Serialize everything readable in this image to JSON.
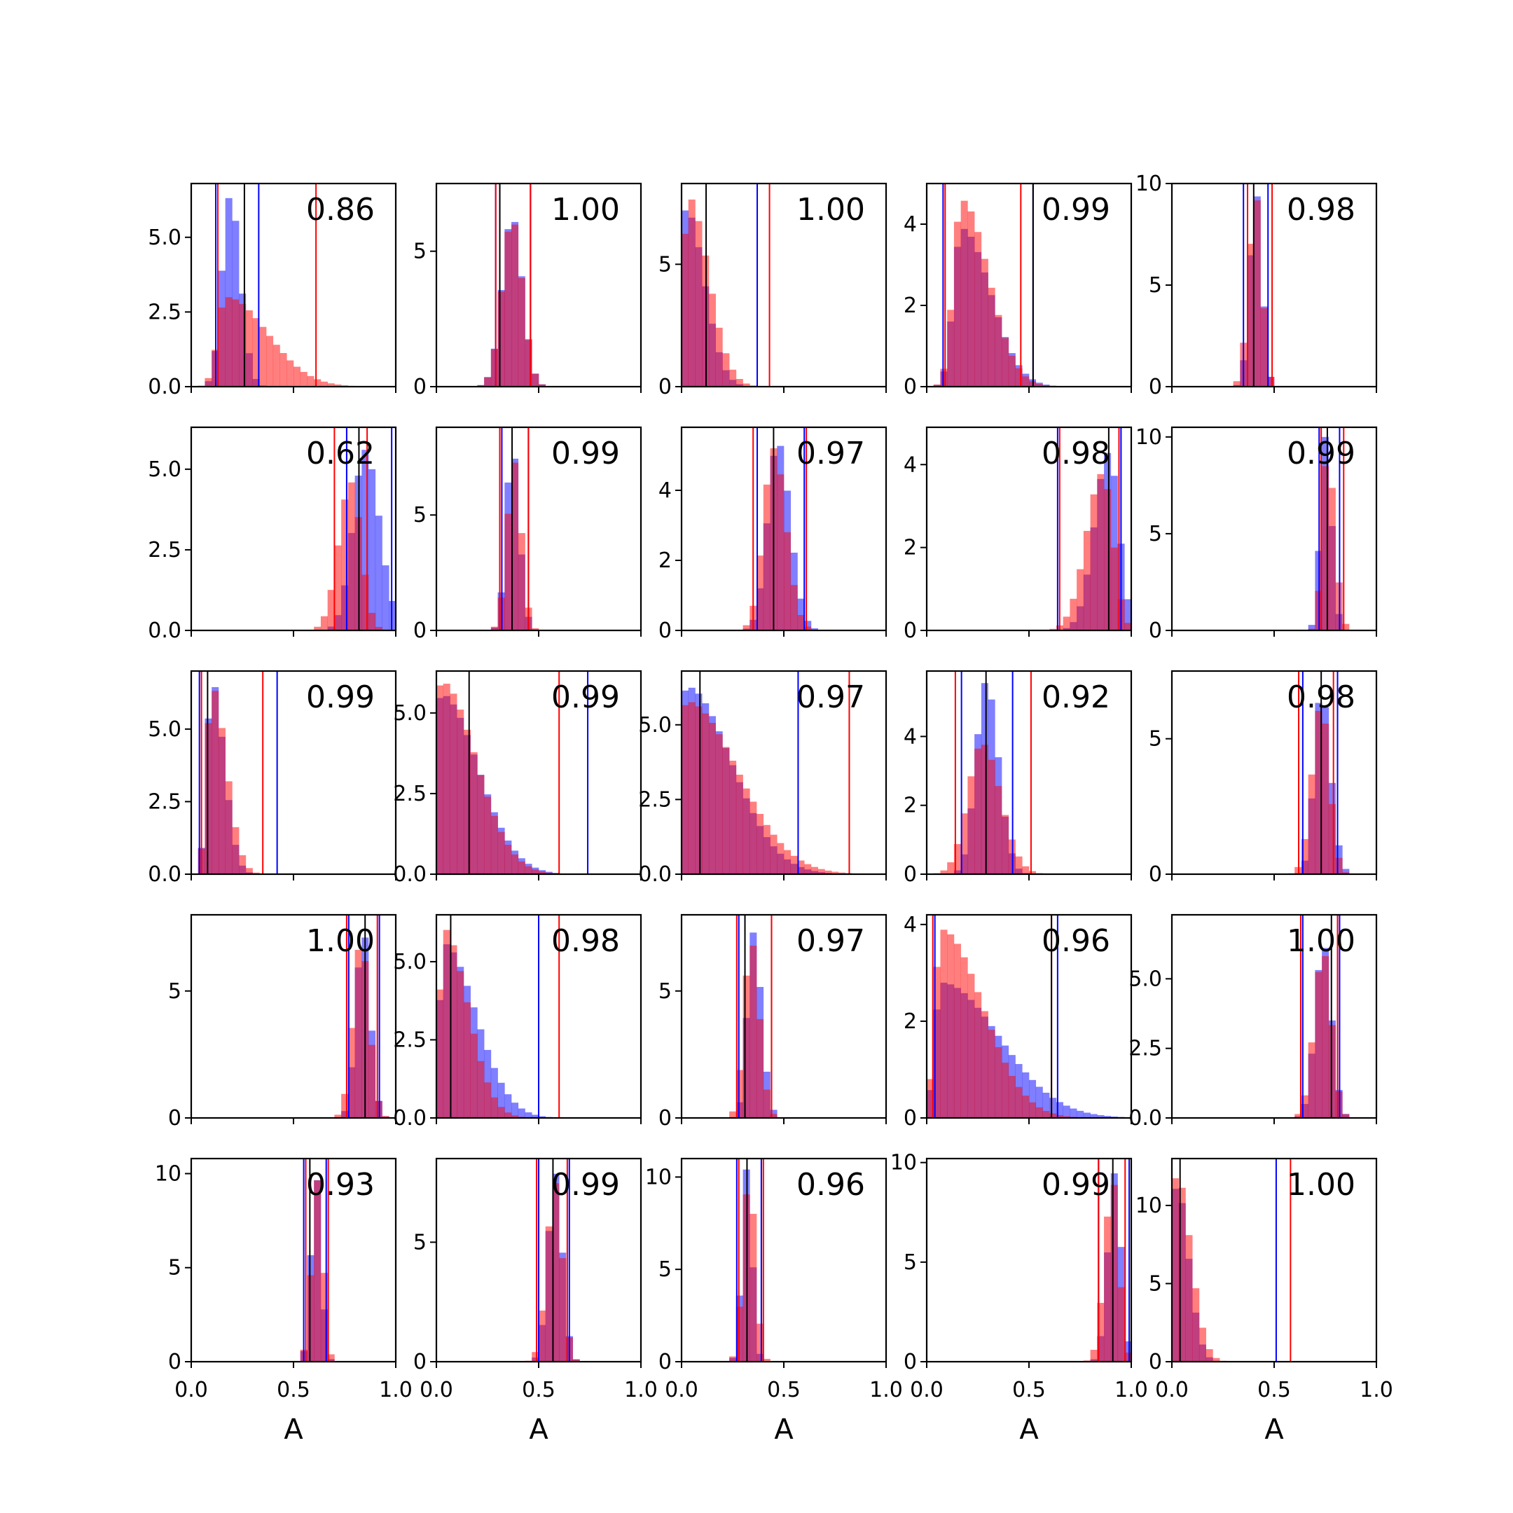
{
  "colors": {
    "blue": "#0000ff",
    "red": "#ff0000",
    "black": "#000000",
    "blue_fill_opacity": 0.5,
    "red_fill_opacity": 0.5
  },
  "chart_data": {
    "type": "histogram-grid",
    "rows": 5,
    "cols": 5,
    "xlim": [
      0.0,
      1.0
    ],
    "xticks": [
      0.0,
      0.5,
      1.0
    ],
    "xtick_labels": [
      "0.0",
      "0.5",
      "1.0"
    ],
    "xlabel": "A",
    "nbins": 30,
    "series": [
      {
        "name": "blue",
        "color": "#0000ff"
      },
      {
        "name": "red",
        "color": "#ff0000"
      }
    ],
    "panels": [
      {
        "score": "0.86",
        "ymax": 6.8,
        "yticks": [
          0,
          2.5,
          5
        ],
        "ytick_labels": [
          "0.0",
          "2.5",
          "5.0"
        ],
        "blue": {
          "peak": 0.19,
          "left_sd": 0.04,
          "right_sd": 0.05,
          "height": 6.4
        },
        "red": {
          "peak": 0.17,
          "left_sd": 0.04,
          "right_sd": 0.2,
          "height": 3.0
        },
        "lines": {
          "blue": [
            0.12,
            0.33
          ],
          "red": [
            0.13,
            0.61
          ],
          "black": [
            0.26
          ]
        }
      },
      {
        "score": "1.00",
        "ymax": 7.5,
        "yticks": [
          0,
          5
        ],
        "ytick_labels": [
          "0",
          "5"
        ],
        "blue": {
          "peak": 0.37,
          "left_sd": 0.05,
          "right_sd": 0.05,
          "height": 6.3
        },
        "red": {
          "peak": 0.37,
          "left_sd": 0.05,
          "right_sd": 0.05,
          "height": 6.2
        },
        "lines": {
          "blue": [
            0.29,
            0.46
          ],
          "red": [
            0.29,
            0.46
          ],
          "black": [
            0.31
          ]
        }
      },
      {
        "score": "1.00",
        "ymax": 8.3,
        "yticks": [
          0,
          5
        ],
        "ytick_labels": [
          "0",
          "5"
        ],
        "blue": {
          "peak": 0.02,
          "left_sd": 0.02,
          "right_sd": 0.09,
          "height": 7.3
        },
        "red": {
          "peak": 0.03,
          "left_sd": 0.02,
          "right_sd": 0.1,
          "height": 7.8
        },
        "lines": {
          "blue": [
            0.37
          ],
          "red": [
            0.43
          ],
          "black": [
            0.12
          ]
        }
      },
      {
        "score": "0.99",
        "ymax": 5.0,
        "yticks": [
          0,
          2,
          4
        ],
        "ytick_labels": [
          "0",
          "2",
          "4"
        ],
        "blue": {
          "peak": 0.17,
          "left_sd": 0.04,
          "right_sd": 0.14,
          "height": 3.9
        },
        "red": {
          "peak": 0.17,
          "left_sd": 0.04,
          "right_sd": 0.13,
          "height": 4.6
        },
        "lines": {
          "blue": [
            0.08,
            0.52
          ],
          "red": [
            0.09,
            0.46
          ],
          "black": [
            0.52
          ]
        }
      },
      {
        "score": "0.98",
        "ymax": 10,
        "yticks": [
          0,
          5,
          10
        ],
        "ytick_labels": [
          "0",
          "5",
          "10"
        ],
        "blue": {
          "peak": 0.41,
          "left_sd": 0.03,
          "right_sd": 0.03,
          "height": 9.6
        },
        "red": {
          "peak": 0.41,
          "left_sd": 0.035,
          "right_sd": 0.03,
          "height": 9.4
        },
        "lines": {
          "blue": [
            0.35,
            0.47
          ],
          "red": [
            0.37,
            0.49
          ],
          "black": [
            0.4
          ]
        }
      },
      {
        "score": "0.62",
        "ymax": 6.3,
        "yticks": [
          0,
          2.5,
          5
        ],
        "ytick_labels": [
          "0.0",
          "2.5",
          "5.0"
        ],
        "blue": {
          "peak": 0.85,
          "left_sd": 0.06,
          "right_sd": 0.07,
          "height": 5.6
        },
        "red": {
          "peak": 0.78,
          "left_sd": 0.06,
          "right_sd": 0.05,
          "height": 4.6
        },
        "lines": {
          "blue": [
            0.76,
            0.98
          ],
          "red": [
            0.7,
            0.86
          ],
          "black": [
            0.82
          ]
        }
      },
      {
        "score": "0.99",
        "ymax": 8.8,
        "yticks": [
          0,
          5
        ],
        "ytick_labels": [
          "0",
          "5"
        ],
        "blue": {
          "peak": 0.37,
          "left_sd": 0.03,
          "right_sd": 0.035,
          "height": 8.0
        },
        "red": {
          "peak": 0.38,
          "left_sd": 0.035,
          "right_sd": 0.035,
          "height": 7.3
        },
        "lines": {
          "blue": [
            0.32,
            0.45
          ],
          "red": [
            0.31,
            0.45
          ],
          "black": [
            0.37
          ]
        }
      },
      {
        "score": "0.97",
        "ymax": 5.8,
        "yticks": [
          0,
          2,
          4
        ],
        "ytick_labels": [
          "0",
          "2",
          "4"
        ],
        "blue": {
          "peak": 0.47,
          "left_sd": 0.05,
          "right_sd": 0.06,
          "height": 5.4
        },
        "red": {
          "peak": 0.45,
          "left_sd": 0.05,
          "right_sd": 0.06,
          "height": 5.2
        },
        "lines": {
          "blue": [
            0.37,
            0.6
          ],
          "red": [
            0.35,
            0.61
          ],
          "black": [
            0.45
          ]
        }
      },
      {
        "score": "0.98",
        "ymax": 4.9,
        "yticks": [
          0,
          2,
          4
        ],
        "ytick_labels": [
          "0",
          "2",
          "4"
        ],
        "blue": {
          "peak": 0.89,
          "left_sd": 0.07,
          "right_sd": 0.05,
          "height": 4.3
        },
        "red": {
          "peak": 0.86,
          "left_sd": 0.08,
          "right_sd": 0.05,
          "height": 3.8
        },
        "lines": {
          "blue": [
            0.64,
            0.95
          ],
          "red": [
            0.65,
            0.94
          ],
          "black": [
            0.89
          ]
        }
      },
      {
        "score": "0.99",
        "ymax": 10.5,
        "yticks": [
          0,
          5,
          10
        ],
        "ytick_labels": [
          "0",
          "5",
          "10"
        ],
        "blue": {
          "peak": 0.75,
          "left_sd": 0.025,
          "right_sd": 0.03,
          "height": 10.0
        },
        "red": {
          "peak": 0.76,
          "left_sd": 0.025,
          "right_sd": 0.035,
          "height": 9.2
        },
        "lines": {
          "blue": [
            0.72,
            0.82
          ],
          "red": [
            0.73,
            0.84
          ],
          "black": [
            0.76
          ]
        }
      },
      {
        "score": "0.99",
        "ymax": 7.0,
        "yticks": [
          0,
          2.5,
          5
        ],
        "ytick_labels": [
          "0.0",
          "2.5",
          "5.0"
        ],
        "blue": {
          "peak": 0.1,
          "left_sd": 0.025,
          "right_sd": 0.06,
          "height": 6.7
        },
        "red": {
          "peak": 0.1,
          "left_sd": 0.025,
          "right_sd": 0.07,
          "height": 6.5
        },
        "lines": {
          "blue": [
            0.04,
            0.42
          ],
          "red": [
            0.05,
            0.35
          ],
          "black": [
            0.08
          ]
        }
      },
      {
        "score": "0.99",
        "ymax": 6.3,
        "yticks": [
          0,
          2.5,
          5
        ],
        "ytick_labels": [
          "0.0",
          "2.5",
          "5.0"
        ],
        "blue": {
          "peak": 0.02,
          "left_sd": 0.015,
          "right_sd": 0.18,
          "height": 5.6
        },
        "red": {
          "peak": 0.02,
          "left_sd": 0.015,
          "right_sd": 0.17,
          "height": 6.0
        },
        "lines": {
          "blue": [
            0.74
          ],
          "red": [
            0.6
          ],
          "black": [
            0.16
          ]
        }
      },
      {
        "score": "0.97",
        "ymax": 6.8,
        "yticks": [
          0,
          2.5,
          5
        ],
        "ytick_labels": [
          "0.0",
          "2.5",
          "5.0"
        ],
        "blue": {
          "peak": 0.02,
          "left_sd": 0.015,
          "right_sd": 0.22,
          "height": 6.3
        },
        "red": {
          "peak": 0.02,
          "left_sd": 0.015,
          "right_sd": 0.25,
          "height": 5.8
        },
        "lines": {
          "blue": [
            0.57
          ],
          "red": [
            0.82
          ],
          "black": [
            0.09
          ]
        }
      },
      {
        "score": "0.92",
        "ymax": 5.9,
        "yticks": [
          0,
          2,
          4
        ],
        "ytick_labels": [
          "0",
          "2",
          "4"
        ],
        "blue": {
          "peak": 0.29,
          "left_sd": 0.05,
          "right_sd": 0.06,
          "height": 5.6
        },
        "red": {
          "peak": 0.27,
          "left_sd": 0.07,
          "right_sd": 0.09,
          "height": 3.8
        },
        "lines": {
          "blue": [
            0.17,
            0.42
          ],
          "red": [
            0.14,
            0.51
          ],
          "black": [
            0.29
          ]
        }
      },
      {
        "score": "0.98",
        "ymax": 7.5,
        "yticks": [
          0,
          5
        ],
        "ytick_labels": [
          "0",
          "5"
        ],
        "blue": {
          "peak": 0.73,
          "left_sd": 0.035,
          "right_sd": 0.045,
          "height": 6.8
        },
        "red": {
          "peak": 0.73,
          "left_sd": 0.045,
          "right_sd": 0.04,
          "height": 6.3
        },
        "lines": {
          "blue": [
            0.64,
            0.81
          ],
          "red": [
            0.62,
            0.79
          ],
          "black": [
            0.73
          ]
        }
      },
      {
        "score": "1.00",
        "ymax": 8.0,
        "yticks": [
          0,
          5
        ],
        "ytick_labels": [
          "0",
          "5"
        ],
        "blue": {
          "peak": 0.84,
          "left_sd": 0.035,
          "right_sd": 0.035,
          "height": 7.4
        },
        "red": {
          "peak": 0.83,
          "left_sd": 0.04,
          "right_sd": 0.04,
          "height": 7.0
        },
        "lines": {
          "blue": [
            0.77,
            0.92
          ],
          "red": [
            0.76,
            0.91
          ],
          "black": [
            0.85
          ]
        }
      },
      {
        "score": "0.98",
        "ymax": 6.5,
        "yticks": [
          0,
          2.5,
          5
        ],
        "ytick_labels": [
          "0.0",
          "2.5",
          "5.0"
        ],
        "blue": {
          "peak": 0.03,
          "left_sd": 0.015,
          "right_sd": 0.16,
          "height": 5.6
        },
        "red": {
          "peak": 0.03,
          "left_sd": 0.015,
          "right_sd": 0.12,
          "height": 6.1
        },
        "lines": {
          "blue": [
            0.5
          ],
          "red": [
            0.6
          ],
          "black": [
            0.07
          ]
        }
      },
      {
        "score": "0.97",
        "ymax": 8.0,
        "yticks": [
          0,
          5
        ],
        "ytick_labels": [
          "0",
          "5"
        ],
        "blue": {
          "peak": 0.35,
          "left_sd": 0.03,
          "right_sd": 0.04,
          "height": 7.3
        },
        "red": {
          "peak": 0.34,
          "left_sd": 0.035,
          "right_sd": 0.04,
          "height": 7.0
        },
        "lines": {
          "blue": [
            0.28,
            0.44
          ],
          "red": [
            0.27,
            0.44
          ],
          "black": [
            0.31
          ]
        }
      },
      {
        "score": "0.96",
        "ymax": 4.2,
        "yticks": [
          0,
          2,
          4
        ],
        "ytick_labels": [
          "0",
          "2",
          "4"
        ],
        "blue": {
          "peak": 0.07,
          "left_sd": 0.03,
          "right_sd": 0.28,
          "height": 2.8
        },
        "red": {
          "peak": 0.07,
          "left_sd": 0.03,
          "right_sd": 0.2,
          "height": 3.9
        },
        "lines": {
          "blue": [
            0.04,
            0.64
          ],
          "red": [
            0.03,
            0.61
          ],
          "black": [
            0.61
          ]
        }
      },
      {
        "score": "1.00",
        "ymax": 7.3,
        "yticks": [
          0,
          2.5,
          5
        ],
        "ytick_labels": [
          "0.0",
          "2.5",
          "5.0"
        ],
        "blue": {
          "peak": 0.74,
          "left_sd": 0.04,
          "right_sd": 0.04,
          "height": 6.3
        },
        "red": {
          "peak": 0.74,
          "left_sd": 0.045,
          "right_sd": 0.04,
          "height": 6.0
        },
        "lines": {
          "blue": [
            0.64,
            0.82
          ],
          "red": [
            0.63,
            0.81
          ],
          "black": [
            0.78
          ]
        }
      },
      {
        "score": "0.93",
        "ymax": 10.8,
        "yticks": [
          0,
          5,
          10
        ],
        "ytick_labels": [
          "0",
          "5",
          "10"
        ],
        "blue": {
          "peak": 0.61,
          "left_sd": 0.025,
          "right_sd": 0.025,
          "height": 10.0
        },
        "red": {
          "peak": 0.62,
          "left_sd": 0.03,
          "right_sd": 0.025,
          "height": 9.7
        },
        "lines": {
          "blue": [
            0.55,
            0.66
          ],
          "red": [
            0.56,
            0.67
          ],
          "black": [
            0.58
          ]
        }
      },
      {
        "score": "0.99",
        "ymax": 8.5,
        "yticks": [
          0,
          5
        ],
        "ytick_labels": [
          "0",
          "5"
        ],
        "blue": {
          "peak": 0.58,
          "left_sd": 0.035,
          "right_sd": 0.035,
          "height": 7.9
        },
        "red": {
          "peak": 0.58,
          "left_sd": 0.04,
          "right_sd": 0.035,
          "height": 7.5
        },
        "lines": {
          "blue": [
            0.5,
            0.65
          ],
          "red": [
            0.49,
            0.64
          ],
          "black": [
            0.57
          ]
        }
      },
      {
        "score": "0.96",
        "ymax": 11.0,
        "yticks": [
          0,
          5,
          10
        ],
        "ytick_labels": [
          "0",
          "5",
          "10"
        ],
        "blue": {
          "peak": 0.32,
          "left_sd": 0.025,
          "right_sd": 0.025,
          "height": 10.5
        },
        "red": {
          "peak": 0.33,
          "left_sd": 0.03,
          "right_sd": 0.03,
          "height": 10.0
        },
        "lines": {
          "blue": [
            0.27,
            0.39
          ],
          "red": [
            0.28,
            0.4
          ],
          "black": [
            0.32
          ]
        }
      },
      {
        "score": "0.99",
        "ymax": 10.2,
        "yticks": [
          0,
          5,
          10
        ],
        "ytick_labels": [
          "0",
          "5",
          "10"
        ],
        "blue": {
          "peak": 0.92,
          "left_sd": 0.035,
          "right_sd": 0.03,
          "height": 9.5
        },
        "red": {
          "peak": 0.91,
          "left_sd": 0.04,
          "right_sd": 0.03,
          "height": 9.1
        },
        "lines": {
          "blue": [
            0.84,
            0.99
          ],
          "red": [
            0.84,
            0.97
          ],
          "black": [
            0.91
          ]
        }
      },
      {
        "score": "1.00",
        "ymax": 13.0,
        "yticks": [
          0,
          5,
          10
        ],
        "ytick_labels": [
          "0",
          "5",
          "10"
        ],
        "blue": {
          "peak": 0.02,
          "left_sd": 0.012,
          "right_sd": 0.06,
          "height": 11.5
        },
        "red": {
          "peak": 0.02,
          "left_sd": 0.012,
          "right_sd": 0.07,
          "height": 12.2
        },
        "lines": {
          "blue": [
            0.51
          ],
          "red": [
            0.58
          ],
          "black": [
            0.04
          ]
        }
      }
    ]
  }
}
